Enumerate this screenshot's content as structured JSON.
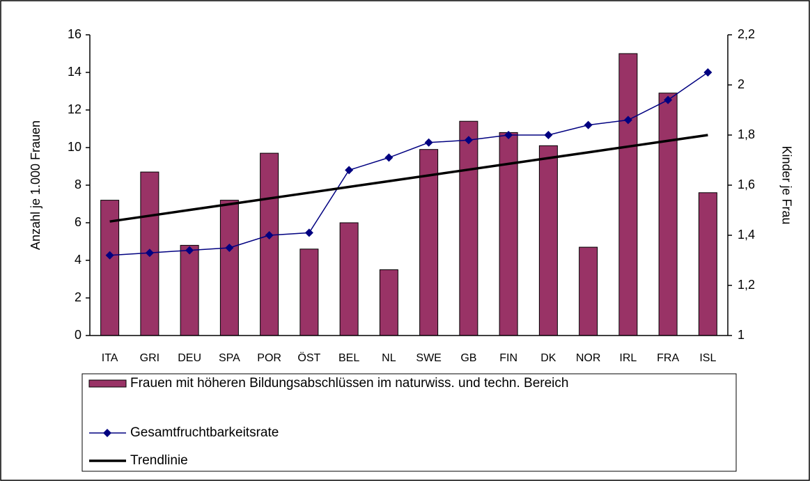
{
  "chart_data": {
    "type": "bar",
    "y_label": "Anzahl je 1.000 Frauen",
    "y2_label": "Kinder je Frau",
    "categories": [
      "ITA",
      "GRI",
      "DEU",
      "SPA",
      "POR",
      "ÖST",
      "BEL",
      "NL",
      "SWE",
      "GB",
      "FIN",
      "DK",
      "NOR",
      "IRL",
      "FRA",
      "ISL"
    ],
    "series": [
      {
        "name": "Frauen mit höheren Bildungsabschlüssen im naturwiss. und techn. Bereich",
        "type": "bar",
        "color": "#993366",
        "values": [
          7.2,
          8.7,
          4.8,
          7.2,
          9.7,
          4.6,
          6.0,
          3.5,
          9.9,
          11.4,
          10.8,
          10.1,
          4.7,
          15.0,
          12.9,
          7.6
        ]
      },
      {
        "name": "Gesamtfruchtbarkeitsrate",
        "type": "line",
        "axis": "y2",
        "color": "#000080",
        "marker": "diamond",
        "values": [
          1.32,
          1.33,
          1.34,
          1.35,
          1.4,
          1.41,
          1.66,
          1.71,
          1.77,
          1.78,
          1.8,
          1.8,
          1.84,
          1.86,
          1.94,
          2.05
        ]
      },
      {
        "name": "Trendlinie",
        "type": "line",
        "axis": "y2",
        "color": "#000000",
        "values": [
          1.455,
          1.478,
          1.501,
          1.524,
          1.547,
          1.57,
          1.593,
          1.616,
          1.639,
          1.662,
          1.685,
          1.708,
          1.731,
          1.754,
          1.777,
          1.8
        ]
      }
    ],
    "ylim": [
      0,
      16
    ],
    "yticks": [
      0,
      2,
      4,
      6,
      8,
      10,
      12,
      14,
      16
    ],
    "y2lim": [
      1,
      2.2
    ],
    "y2ticks": [
      1,
      {
        "value": 1.2,
        "label": "1,2"
      },
      {
        "value": 1.4,
        "label": "1,4"
      },
      {
        "value": 1.6,
        "label": "1,6"
      },
      {
        "value": 1.8,
        "label": "1,8"
      },
      2,
      {
        "value": 2.2,
        "label": "2,2"
      }
    ],
    "grid": false,
    "legend": "bottom"
  }
}
